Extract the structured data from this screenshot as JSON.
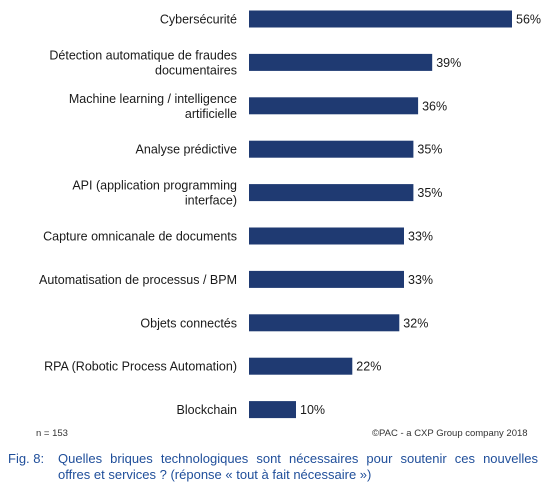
{
  "chart_data": {
    "type": "bar",
    "orientation": "horizontal",
    "categories": [
      "Cybersécurité",
      "Détection automatique de fraudes documentaires",
      "Machine learning / intelligence artificielle",
      "Analyse prédictive",
      "API (application programming interface)",
      "Capture omnicanale de documents",
      "Automatisation de processus / BPM",
      "Objets connectés",
      "RPA (Robotic Process Automation)",
      "Blockchain"
    ],
    "category_lines": [
      [
        "Cybersécurité"
      ],
      [
        "Détection automatique de fraudes",
        "documentaires"
      ],
      [
        "Machine learning / intelligence",
        "artificielle"
      ],
      [
        "Analyse prédictive"
      ],
      [
        "API (application programming",
        "interface)"
      ],
      [
        "Capture omnicanale de documents"
      ],
      [
        "Automatisation de processus / BPM"
      ],
      [
        "Objets connectés"
      ],
      [
        "RPA (Robotic Process Automation)"
      ],
      [
        "Blockchain"
      ]
    ],
    "values": [
      56,
      39,
      36,
      35,
      35,
      33,
      33,
      32,
      22,
      10
    ],
    "value_labels": [
      "56%",
      "39%",
      "36%",
      "35%",
      "35%",
      "33%",
      "33%",
      "32%",
      "22%",
      "10%"
    ],
    "xlim": [
      0,
      56
    ],
    "bar_color": "#1f3a72",
    "grid": false,
    "legend": "none"
  },
  "footer": {
    "sample_note": "n = 153",
    "copyright": "©PAC - a CXP Group company 2018"
  },
  "caption": {
    "prefix": "Fig. 8:",
    "text": "Quelles briques technologiques sont nécessaires pour soutenir ces nouvelles offres et services ? (réponse « tout à fait nécessaire »)",
    "color": "#1f4e9a"
  }
}
